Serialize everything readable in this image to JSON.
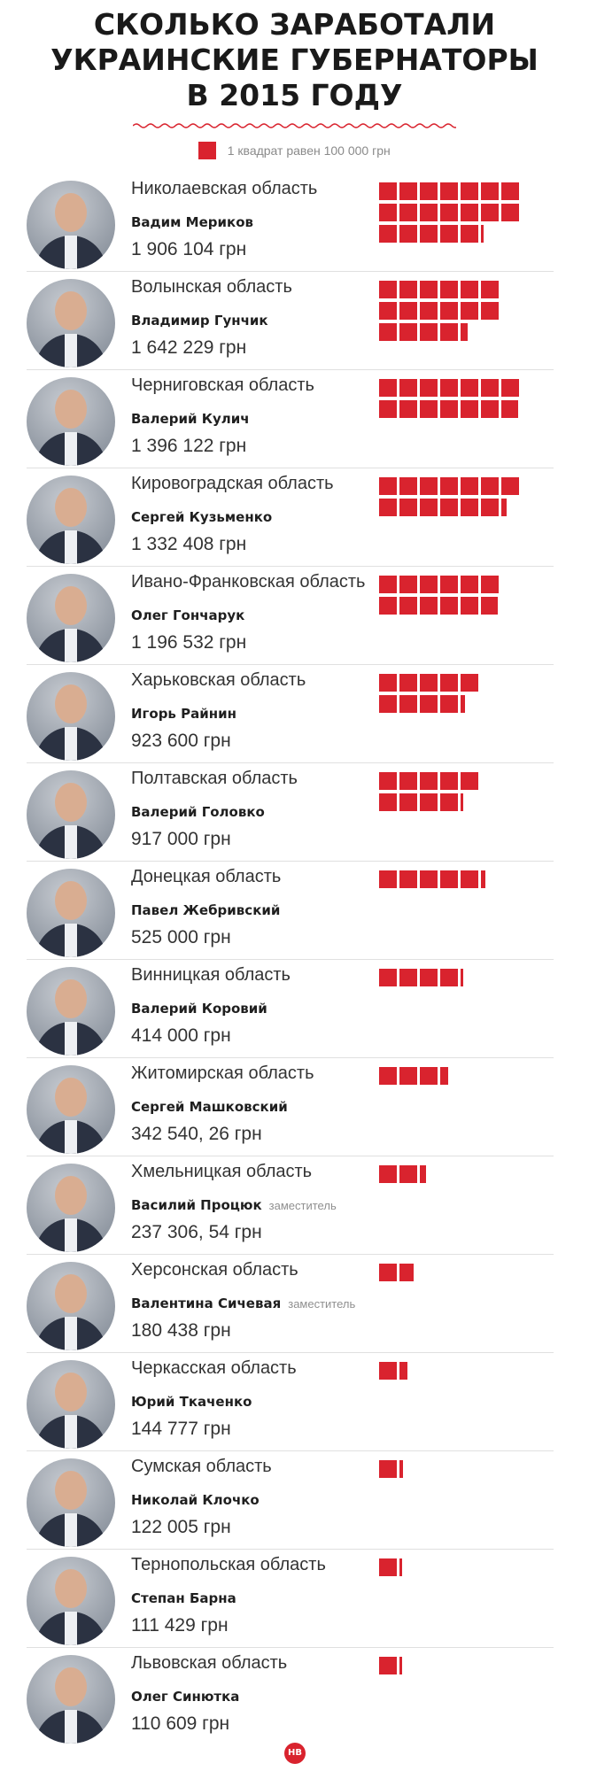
{
  "title": {
    "line1": "СКОЛЬКО ЗАРАБОТАЛИ",
    "line2": "УКРАИНСКИЕ ГУБЕРНАТОРЫ",
    "line3": "В 2015 ГОДУ"
  },
  "legend": {
    "text": "1 квадрат равен 100 000 грн"
  },
  "colors": {
    "accent": "#d9232e"
  },
  "logo": "НВ",
  "chart_data": {
    "type": "bar",
    "unit": "грн",
    "square_value": 100000,
    "categories": [
      "Николаевская область",
      "Волынская область",
      "Черниговская область",
      "Кировоградская область",
      "Ивано-Франковская область",
      "Харьковская область",
      "Полтавская область",
      "Донецкая область",
      "Винницкая область",
      "Житомирская область",
      "Хмельницкая область",
      "Херсонская область",
      "Черкасская область",
      "Сумская область",
      "Тернопольская область",
      "Львовская область"
    ],
    "values": [
      1906104,
      1642229,
      1396122,
      1332408,
      1196532,
      923600,
      917000,
      525000,
      414000,
      342540.26,
      237306.54,
      180438,
      144777,
      122005,
      111429,
      110609
    ],
    "rows": [
      {
        "region": "Николаевская область",
        "name": "Вадим Мериков",
        "note": "",
        "amount": "1 906 104 грн",
        "value": 1906104
      },
      {
        "region": "Волынская область",
        "name": "Владимир Гунчик",
        "note": "",
        "amount": "1 642 229 грн",
        "value": 1642229
      },
      {
        "region": "Черниговская область",
        "name": "Валерий Кулич",
        "note": "",
        "amount": "1 396 122 грн",
        "value": 1396122
      },
      {
        "region": "Кировоградская область",
        "name": "Сергей Кузьменко",
        "note": "",
        "amount": "1 332 408 грн",
        "value": 1332408
      },
      {
        "region": "Ивано-Франковская область",
        "name": "Олег Гончарук",
        "note": "",
        "amount": "1 196 532 грн",
        "value": 1196532
      },
      {
        "region": "Харьковская область",
        "name": "Игорь Райнин",
        "note": "",
        "amount": "923 600 грн",
        "value": 923600
      },
      {
        "region": "Полтавская область",
        "name": "Валерий Головко",
        "note": "",
        "amount": "917 000 грн",
        "value": 917000
      },
      {
        "region": "Донецкая область",
        "name": "Павел Жебривский",
        "note": "",
        "amount": "525 000 грн",
        "value": 525000
      },
      {
        "region": "Винницкая область",
        "name": "Валерий Коровий",
        "note": "",
        "amount": "414 000 грн",
        "value": 414000
      },
      {
        "region": "Житомирская область",
        "name": "Сергей Машковский",
        "note": "",
        "amount": "342 540, 26 грн",
        "value": 342540.26
      },
      {
        "region": "Хмельницкая область",
        "name": "Василий Процюк",
        "note": "заместитель",
        "amount": "237 306, 54 грн",
        "value": 237306.54
      },
      {
        "region": "Херсонская область",
        "name": "Валентина Сичевая",
        "note": "заместитель",
        "amount": "180 438 грн",
        "value": 180438
      },
      {
        "region": "Черкасская область",
        "name": "Юрий Ткаченко",
        "note": "",
        "amount": "144 777 грн",
        "value": 144777
      },
      {
        "region": "Сумская область",
        "name": "Николай Клочко",
        "note": "",
        "amount": "122 005 грн",
        "value": 122005
      },
      {
        "region": "Тернопольская область",
        "name": "Степан Барна",
        "note": "",
        "amount": "111 429 грн",
        "value": 111429
      },
      {
        "region": "Львовская область",
        "name": "Олег Синютка",
        "note": "",
        "amount": "110 609 грн",
        "value": 110609
      }
    ]
  }
}
